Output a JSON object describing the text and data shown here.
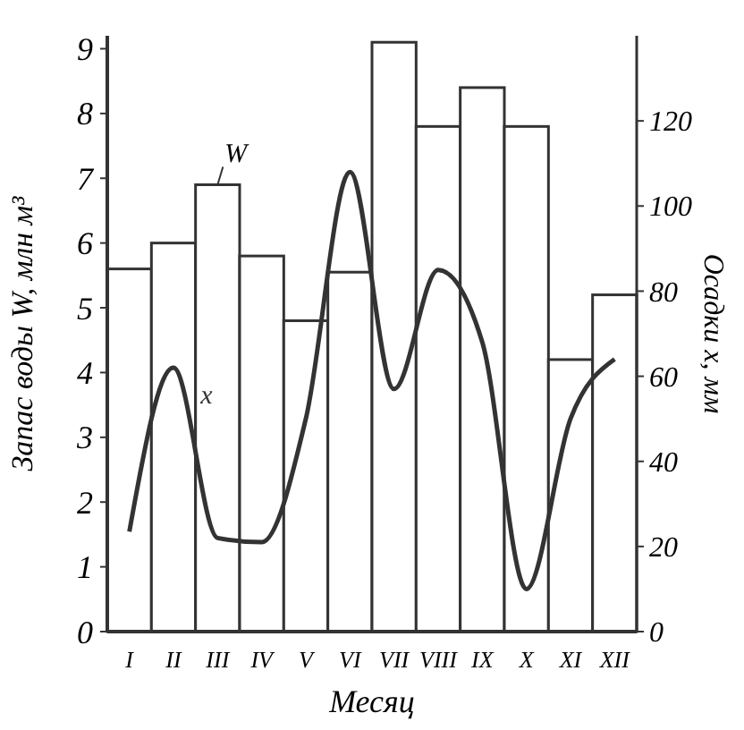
{
  "chart_data": {
    "type": "bar",
    "xlabel": "Месяц",
    "ylabel": "Запас воды W, млн м³",
    "y2label": "Осадки x, мм",
    "categories": [
      "I",
      "II",
      "III",
      "IV",
      "V",
      "VI",
      "VII",
      "VIII",
      "IX",
      "X",
      "XI",
      "XII"
    ],
    "ylim": [
      0,
      9.2
    ],
    "yticks": [
      0,
      1,
      2,
      3,
      4,
      5,
      6,
      7,
      8,
      9
    ],
    "y2lim": [
      0,
      140
    ],
    "y2ticks": [
      0,
      20,
      40,
      60,
      80,
      100,
      120
    ],
    "series": [
      {
        "name": "W",
        "color": "#ffffff",
        "values": [
          5.6,
          6.0,
          6.9,
          5.8,
          4.8,
          5.55,
          9.1,
          7.8,
          8.4,
          7.8,
          4.2,
          5.2
        ]
      },
      {
        "name": "x",
        "type": "line",
        "axis": "y2",
        "color": "#333333",
        "values": [
          23.5,
          62,
          22,
          21,
          50,
          108,
          57,
          85,
          68,
          10,
          50,
          64
        ]
      }
    ],
    "grid": false,
    "marker": "none",
    "line_style": "solid"
  }
}
